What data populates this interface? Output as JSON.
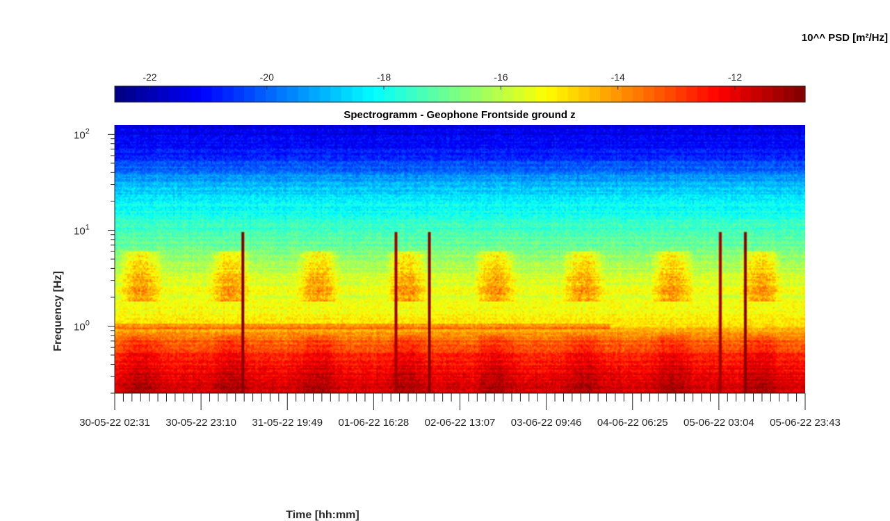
{
  "chart_data": {
    "type": "heatmap",
    "title": "Spectrogramm - Geophone Frontside ground z",
    "xlabel": "Time [hh:mm]",
    "ylabel": "Frequency [Hz]",
    "colorbar": {
      "title": "10^^ PSD [m²/Hz]",
      "range": [
        -22.6,
        -10.8
      ],
      "ticks": [
        -22,
        -20,
        -18,
        -16,
        -14,
        -12
      ],
      "colormap": "jet",
      "position": "top"
    },
    "y_scale": "log",
    "y_range": [
      0.2,
      125
    ],
    "y_ticks": [
      {
        "value": 1,
        "base": "10",
        "exp": "0"
      },
      {
        "value": 10,
        "base": "10",
        "exp": "1"
      },
      {
        "value": 100,
        "base": "10",
        "exp": "2"
      }
    ],
    "x_ticks": [
      "30-05-22 02:31",
      "30-05-22 23:10",
      "31-05-22 19:49",
      "01-06-22 16:28",
      "02-06-22 13:07",
      "03-06-22 09:46",
      "04-06-22 06:25",
      "05-06-22 03:04",
      "05-06-22 23:43"
    ],
    "x_minor_per_major": 10,
    "grid": false,
    "psd_profile": [
      {
        "freq": 0.2,
        "psd": -11.7
      },
      {
        "freq": 0.3,
        "psd": -12.1
      },
      {
        "freq": 0.5,
        "psd": -12.7
      },
      {
        "freq": 0.7,
        "psd": -13.4
      },
      {
        "freq": 0.95,
        "psd": -14.6
      },
      {
        "freq": 1.5,
        "psd": -15.4
      },
      {
        "freq": 3,
        "psd": -15.6
      },
      {
        "freq": 6,
        "psd": -16.8
      },
      {
        "freq": 10,
        "psd": -17.4
      },
      {
        "freq": 20,
        "psd": -18.2
      },
      {
        "freq": 35,
        "psd": -19.4
      },
      {
        "freq": 60,
        "psd": -20.8
      },
      {
        "freq": 125,
        "psd": -21.6
      }
    ]
  }
}
